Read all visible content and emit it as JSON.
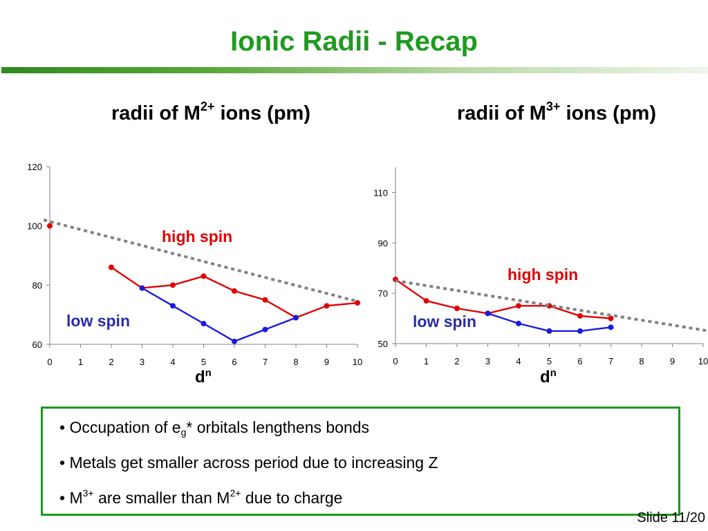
{
  "slide": {
    "title": "Ionic Radii - Recap",
    "number_label": "Slide 11/20"
  },
  "charts": {
    "left_heading": {
      "prefix": "radii of M",
      "sup": "2+",
      "suffix": " ions (pm)"
    },
    "right_heading": {
      "prefix": "radii of M",
      "sup": "3+",
      "suffix": " ions (pm)"
    }
  },
  "bullets": {
    "b1": {
      "bullet": "• ",
      "pre": "Occupation of e",
      "sub": "g",
      "post": "* orbitals lengthens bonds"
    },
    "b2": {
      "text": "• Metals get smaller across period due to increasing Z"
    },
    "b3": {
      "pre": "• M",
      "sup1": "3+",
      "mid": " are smaller than M",
      "sup2": "2+",
      "post": " due to charge"
    }
  },
  "colors": {
    "high_spin": "#e00000",
    "low_spin": "#1a1ae0",
    "trend": "#808080",
    "accent": "#1a9a1a"
  },
  "chart_data": [
    {
      "type": "line",
      "xlabel": "d",
      "xlabel_sup": "n",
      "xlim": [
        0,
        10
      ],
      "ylim": [
        60,
        120
      ],
      "x_ticks": [
        "0",
        "1",
        "2",
        "3",
        "4",
        "5",
        "6",
        "7",
        "8",
        "9",
        "10"
      ],
      "y_ticks": [
        "60",
        "80",
        "100",
        "120"
      ],
      "y_tick_values": [
        60,
        80,
        100,
        120
      ],
      "annotations": {
        "high_spin": "high spin",
        "low_spin": "low spin"
      },
      "series": [
        {
          "name": "high spin",
          "color": "#e00000",
          "points": [
            [
              0,
              100
            ],
            [
              2,
              86
            ],
            [
              3,
              79
            ],
            [
              4,
              80
            ],
            [
              5,
              83
            ],
            [
              6,
              78
            ],
            [
              7,
              75
            ],
            [
              8,
              69
            ],
            [
              9,
              73
            ],
            [
              10,
              74
            ]
          ],
          "segments": [
            [
              1,
              2,
              3,
              4,
              5,
              6,
              7,
              8,
              9
            ]
          ]
        },
        {
          "name": "low spin",
          "color": "#1a1ae0",
          "points": [
            [
              3,
              79
            ],
            [
              4,
              73
            ],
            [
              5,
              67
            ],
            [
              6,
              61
            ],
            [
              7,
              65
            ],
            [
              8,
              69
            ]
          ],
          "segments": [
            [
              0,
              1,
              2,
              3,
              4,
              5
            ]
          ]
        },
        {
          "name": "trend",
          "color": "#808080",
          "dashed": true,
          "points": [
            [
              -0.2,
              102
            ],
            [
              10,
              74.5
            ]
          ],
          "segments": [
            [
              0,
              1
            ]
          ]
        }
      ]
    },
    {
      "type": "line",
      "xlabel": "d",
      "xlabel_sup": "n",
      "xlim": [
        0,
        10
      ],
      "ylim": [
        50,
        120
      ],
      "x_ticks": [
        "0",
        "1",
        "2",
        "3",
        "4",
        "5",
        "6",
        "7",
        "8",
        "9",
        "10"
      ],
      "y_ticks": [
        "50",
        "70",
        "90",
        "110"
      ],
      "y_tick_values": [
        50,
        70,
        90,
        110
      ],
      "annotations": {
        "high_spin": "high spin",
        "low_spin": "low spin"
      },
      "series": [
        {
          "name": "high spin",
          "color": "#e00000",
          "points": [
            [
              0,
              75.5
            ],
            [
              1,
              67
            ],
            [
              2,
              64
            ],
            [
              3,
              62
            ],
            [
              4,
              65
            ],
            [
              5,
              65
            ],
            [
              6,
              61
            ],
            [
              7,
              60
            ]
          ],
          "segments": [
            [
              0,
              1,
              2,
              3,
              4,
              5,
              6,
              7
            ]
          ]
        },
        {
          "name": "low spin",
          "color": "#1a1ae0",
          "points": [
            [
              3,
              62
            ],
            [
              4,
              58
            ],
            [
              5,
              55
            ],
            [
              6,
              55
            ],
            [
              7,
              56.5
            ]
          ],
          "segments": [
            [
              0,
              1,
              2,
              3,
              4
            ]
          ]
        },
        {
          "name": "trend",
          "color": "#808080",
          "dashed": true,
          "points": [
            [
              0,
              75
            ],
            [
              10.2,
              55
            ]
          ],
          "segments": [
            [
              0,
              1
            ]
          ]
        }
      ]
    }
  ]
}
